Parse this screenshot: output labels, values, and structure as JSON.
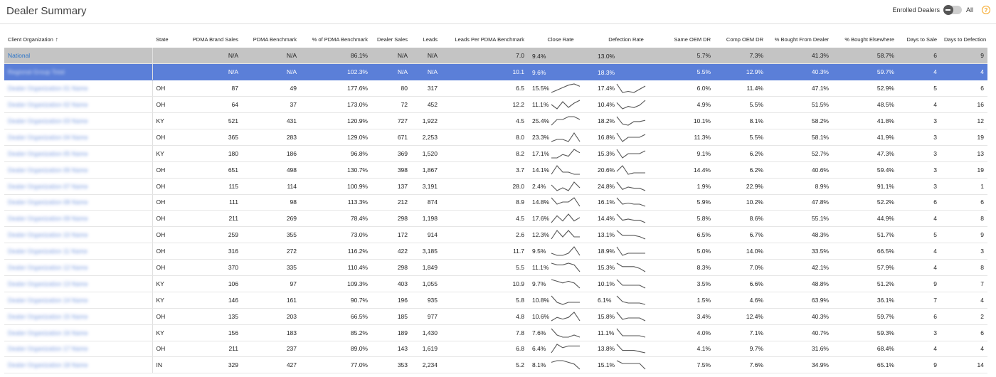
{
  "header": {
    "title": "Dealer Summary",
    "enrolled_label": "Enrolled Dealers",
    "toggle_value": "All",
    "help_glyph": "?"
  },
  "table": {
    "columns": [
      {
        "key": "org",
        "label": "Client Organization",
        "sort": "↑"
      },
      {
        "key": "state",
        "label": "State"
      },
      {
        "key": "brand",
        "label": "PDMA Brand Sales"
      },
      {
        "key": "bench",
        "label": "PDMA Benchmark"
      },
      {
        "key": "pct",
        "label": "% of PDMA Benchmark"
      },
      {
        "key": "sales",
        "label": "Dealer Sales"
      },
      {
        "key": "leads",
        "label": "Leads"
      },
      {
        "key": "lpb",
        "label": "Leads Per PDMA Benchmark"
      },
      {
        "key": "close",
        "label": "Close Rate"
      },
      {
        "key": "defect",
        "label": "Defection Rate"
      },
      {
        "key": "same",
        "label": "Same OEM DR"
      },
      {
        "key": "comp",
        "label": "Comp OEM DR"
      },
      {
        "key": "bought",
        "label": "% Bought From Dealer"
      },
      {
        "key": "else",
        "label": "% Bought Elsewhere"
      },
      {
        "key": "dsale",
        "label": "Days to Sale"
      },
      {
        "key": "ddef",
        "label": "Days to Defection"
      }
    ],
    "rows": [
      {
        "type": "national",
        "org": "National",
        "state": "",
        "brand": "N/A",
        "bench": "N/A",
        "pct": "86.1%",
        "sales": "N/A",
        "leads": "N/A",
        "lpb": "7.0",
        "close": "9.4%",
        "defect": "13.0%",
        "same": "5.7%",
        "comp": "7.3%",
        "bought": "41.3%",
        "else": "58.7%",
        "dsale": "6",
        "ddef": "9",
        "close_spark": [],
        "defect_spark": []
      },
      {
        "type": "selected",
        "org": "Regional Group Total",
        "state": "",
        "brand": "N/A",
        "bench": "N/A",
        "pct": "102.3%",
        "sales": "N/A",
        "leads": "N/A",
        "lpb": "10.1",
        "close": "9.6%",
        "defect": "18.3%",
        "same": "5.5%",
        "comp": "12.9%",
        "bought": "40.3%",
        "else": "59.7%",
        "dsale": "4",
        "ddef": "4",
        "close_spark": [],
        "defect_spark": []
      },
      {
        "type": "normal",
        "org": "Dealer Organization 01 Name",
        "state": "OH",
        "brand": "87",
        "bench": "49",
        "pct": "177.6%",
        "sales": "80",
        "leads": "317",
        "lpb": "6.5",
        "close": "15.5%",
        "defect": "17.4%",
        "same": "6.0%",
        "comp": "11.4%",
        "bought": "47.1%",
        "else": "52.9%",
        "dsale": "5",
        "ddef": "6",
        "close_spark": [
          12,
          14,
          16,
          18,
          19,
          17
        ],
        "defect_spark": [
          20,
          12,
          13,
          12,
          15,
          18
        ]
      },
      {
        "type": "normal",
        "org": "Dealer Organization 02 Name",
        "state": "OH",
        "brand": "64",
        "bench": "37",
        "pct": "173.0%",
        "sales": "72",
        "leads": "452",
        "lpb": "12.2",
        "close": "11.1%",
        "defect": "10.4%",
        "same": "4.9%",
        "comp": "5.5%",
        "bought": "51.5%",
        "else": "48.5%",
        "dsale": "4",
        "ddef": "16",
        "close_spark": [
          11,
          8,
          13,
          9,
          12,
          14
        ],
        "defect_spark": [
          16,
          11,
          13,
          12,
          14,
          18
        ]
      },
      {
        "type": "normal",
        "org": "Dealer Organization 03 Name",
        "state": "KY",
        "brand": "521",
        "bench": "431",
        "pct": "120.9%",
        "sales": "727",
        "leads": "1,922",
        "lpb": "4.5",
        "close": "25.4%",
        "defect": "18.2%",
        "same": "10.1%",
        "comp": "8.1%",
        "bought": "58.2%",
        "else": "41.8%",
        "dsale": "3",
        "ddef": "12",
        "close_spark": [
          10,
          12,
          12,
          13,
          13,
          12
        ],
        "defect_spark": [
          18,
          12,
          11,
          14,
          14,
          15
        ]
      },
      {
        "type": "normal",
        "org": "Dealer Organization 04 Name",
        "state": "OH",
        "brand": "365",
        "bench": "283",
        "pct": "129.0%",
        "sales": "671",
        "leads": "2,253",
        "lpb": "8.0",
        "close": "23.3%",
        "defect": "16.8%",
        "same": "11.3%",
        "comp": "5.5%",
        "bought": "58.1%",
        "else": "41.9%",
        "dsale": "3",
        "ddef": "19",
        "close_spark": [
          12,
          13,
          13,
          12,
          16,
          12
        ],
        "defect_spark": [
          18,
          12,
          15,
          15,
          15,
          17
        ]
      },
      {
        "type": "normal",
        "org": "Dealer Organization 05 Name",
        "state": "KY",
        "brand": "180",
        "bench": "186",
        "pct": "96.8%",
        "sales": "369",
        "leads": "1,520",
        "lpb": "8.2",
        "close": "17.1%",
        "defect": "15.3%",
        "same": "9.1%",
        "comp": "6.2%",
        "bought": "52.7%",
        "else": "47.3%",
        "dsale": "3",
        "ddef": "13",
        "close_spark": [
          10,
          10,
          12,
          11,
          15,
          13
        ],
        "defect_spark": [
          18,
          12,
          15,
          15,
          15,
          17
        ]
      },
      {
        "type": "normal",
        "org": "Dealer Organization 06 Name",
        "state": "OH",
        "brand": "651",
        "bench": "498",
        "pct": "130.7%",
        "sales": "398",
        "leads": "1,867",
        "lpb": "3.7",
        "close": "14.1%",
        "defect": "20.6%",
        "same": "14.4%",
        "comp": "6.2%",
        "bought": "40.6%",
        "else": "59.4%",
        "dsale": "3",
        "ddef": "19",
        "close_spark": [
          12,
          16,
          13,
          13,
          12,
          12
        ],
        "defect_spark": [
          14,
          18,
          12,
          13,
          13,
          13
        ]
      },
      {
        "type": "normal",
        "org": "Dealer Organization 07 Name",
        "state": "OH",
        "brand": "115",
        "bench": "114",
        "pct": "100.9%",
        "sales": "137",
        "leads": "3,191",
        "lpb": "28.0",
        "close": "2.4%",
        "defect": "24.8%",
        "same": "1.9%",
        "comp": "22.9%",
        "bought": "8.9%",
        "else": "91.1%",
        "dsale": "3",
        "ddef": "1",
        "close_spark": [
          14,
          12,
          13,
          12,
          15,
          13
        ],
        "defect_spark": [
          18,
          12,
          14,
          13,
          13,
          11
        ]
      },
      {
        "type": "normal",
        "org": "Dealer Organization 08 Name",
        "state": "OH",
        "brand": "111",
        "bench": "98",
        "pct": "113.3%",
        "sales": "212",
        "leads": "874",
        "lpb": "8.9",
        "close": "14.8%",
        "defect": "16.1%",
        "same": "5.9%",
        "comp": "10.2%",
        "bought": "47.8%",
        "else": "52.2%",
        "dsale": "6",
        "ddef": "6",
        "close_spark": [
          15,
          12,
          13,
          13,
          15,
          11
        ],
        "defect_spark": [
          18,
          12,
          13,
          12,
          12,
          10
        ]
      },
      {
        "type": "normal",
        "org": "Dealer Organization 09 Name",
        "state": "OH",
        "brand": "211",
        "bench": "269",
        "pct": "78.4%",
        "sales": "298",
        "leads": "1,198",
        "lpb": "4.5",
        "close": "17.6%",
        "defect": "14.4%",
        "same": "5.8%",
        "comp": "8.6%",
        "bought": "55.1%",
        "else": "44.9%",
        "dsale": "4",
        "ddef": "8",
        "close_spark": [
          11,
          15,
          12,
          16,
          12,
          14
        ],
        "defect_spark": [
          17,
          12,
          13,
          12,
          12,
          10
        ]
      },
      {
        "type": "normal",
        "org": "Dealer Organization 10 Name",
        "state": "OH",
        "brand": "259",
        "bench": "355",
        "pct": "73.0%",
        "sales": "172",
        "leads": "914",
        "lpb": "2.6",
        "close": "12.3%",
        "defect": "13.1%",
        "same": "6.5%",
        "comp": "6.7%",
        "bought": "48.3%",
        "else": "51.7%",
        "dsale": "5",
        "ddef": "9",
        "close_spark": [
          11,
          15,
          12,
          15,
          12,
          12
        ],
        "defect_spark": [
          17,
          13,
          13,
          13,
          12,
          10
        ]
      },
      {
        "type": "normal",
        "org": "Dealer Organization 11 Name",
        "state": "OH",
        "brand": "316",
        "bench": "272",
        "pct": "116.2%",
        "sales": "422",
        "leads": "3,185",
        "lpb": "11.7",
        "close": "9.5%",
        "defect": "18.9%",
        "same": "5.0%",
        "comp": "14.0%",
        "bought": "33.5%",
        "else": "66.5%",
        "dsale": "4",
        "ddef": "3",
        "close_spark": [
          12,
          11,
          11,
          12,
          15,
          11
        ],
        "defect_spark": [
          16,
          12,
          13,
          13,
          13,
          13
        ]
      },
      {
        "type": "normal",
        "org": "Dealer Organization 12 Name",
        "state": "OH",
        "brand": "370",
        "bench": "335",
        "pct": "110.4%",
        "sales": "298",
        "leads": "1,849",
        "lpb": "5.5",
        "close": "11.1%",
        "defect": "15.3%",
        "same": "8.3%",
        "comp": "7.0%",
        "bought": "42.1%",
        "else": "57.9%",
        "dsale": "4",
        "ddef": "8",
        "close_spark": [
          14,
          13,
          13,
          14,
          13,
          9
        ],
        "defect_spark": [
          15,
          13,
          13,
          13,
          12,
          10
        ]
      },
      {
        "type": "normal",
        "org": "Dealer Organization 13 Name",
        "state": "KY",
        "brand": "106",
        "bench": "97",
        "pct": "109.3%",
        "sales": "403",
        "leads": "1,055",
        "lpb": "10.9",
        "close": "9.7%",
        "defect": "10.1%",
        "same": "3.5%",
        "comp": "6.6%",
        "bought": "48.8%",
        "else": "51.2%",
        "dsale": "9",
        "ddef": "7",
        "close_spark": [
          14,
          13,
          12,
          13,
          12,
          9
        ],
        "defect_spark": [
          16,
          12,
          12,
          12,
          12,
          10
        ]
      },
      {
        "type": "normal",
        "org": "Dealer Organization 14 Name",
        "state": "KY",
        "brand": "146",
        "bench": "161",
        "pct": "90.7%",
        "sales": "196",
        "leads": "935",
        "lpb": "5.8",
        "close": "10.8%",
        "defect": "6.1%",
        "same": "1.5%",
        "comp": "4.6%",
        "bought": "63.9%",
        "else": "36.1%",
        "dsale": "7",
        "ddef": "4",
        "close_spark": [
          15,
          12,
          11,
          12,
          12,
          12
        ],
        "defect_spark": [
          16,
          12,
          11,
          11,
          11,
          10
        ]
      },
      {
        "type": "normal",
        "org": "Dealer Organization 15 Name",
        "state": "OH",
        "brand": "135",
        "bench": "203",
        "pct": "66.5%",
        "sales": "185",
        "leads": "977",
        "lpb": "4.8",
        "close": "10.6%",
        "defect": "15.8%",
        "same": "3.4%",
        "comp": "12.4%",
        "bought": "40.3%",
        "else": "59.7%",
        "dsale": "6",
        "ddef": "2",
        "close_spark": [
          11,
          13,
          12,
          13,
          16,
          11
        ],
        "defect_spark": [
          17,
          12,
          13,
          13,
          13,
          11
        ]
      },
      {
        "type": "normal",
        "org": "Dealer Organization 16 Name",
        "state": "KY",
        "brand": "156",
        "bench": "183",
        "pct": "85.2%",
        "sales": "189",
        "leads": "1,430",
        "lpb": "7.8",
        "close": "7.6%",
        "defect": "11.1%",
        "same": "4.0%",
        "comp": "7.1%",
        "bought": "40.7%",
        "else": "59.3%",
        "dsale": "3",
        "ddef": "6",
        "close_spark": [
          15,
          12,
          11,
          11,
          12,
          11
        ],
        "defect_spark": [
          17,
          12,
          12,
          12,
          12,
          11
        ]
      },
      {
        "type": "normal",
        "org": "Dealer Organization 17 Name",
        "state": "OH",
        "brand": "211",
        "bench": "237",
        "pct": "89.0%",
        "sales": "143",
        "leads": "1,619",
        "lpb": "6.8",
        "close": "6.4%",
        "defect": "13.8%",
        "same": "4.1%",
        "comp": "9.7%",
        "bought": "31.6%",
        "else": "68.4%",
        "dsale": "4",
        "ddef": "4",
        "close_spark": [
          9,
          14,
          12,
          13,
          13,
          13
        ],
        "defect_spark": [
          17,
          12,
          12,
          12,
          11,
          10
        ]
      },
      {
        "type": "normal",
        "org": "Dealer Organization 18 Name",
        "state": "IN",
        "brand": "329",
        "bench": "427",
        "pct": "77.0%",
        "sales": "353",
        "leads": "2,234",
        "lpb": "5.2",
        "close": "8.1%",
        "defect": "15.1%",
        "same": "7.5%",
        "comp": "7.6%",
        "bought": "34.9%",
        "else": "65.1%",
        "dsale": "9",
        "ddef": "14",
        "close_spark": [
          13,
          14,
          14,
          13,
          12,
          9
        ],
        "defect_spark": [
          14,
          13,
          13,
          13,
          13,
          11
        ]
      }
    ]
  }
}
